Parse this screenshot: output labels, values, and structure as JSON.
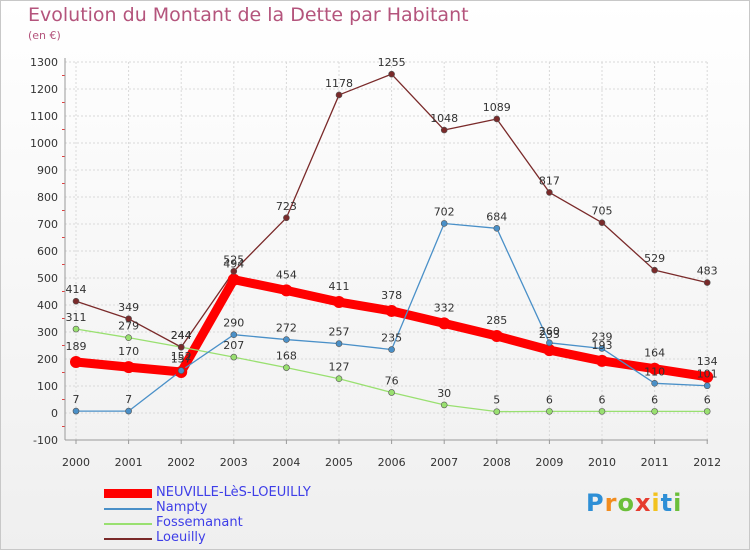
{
  "title": "Evolution du Montant de la Dette par Habitant",
  "subtitle": "(en €)",
  "logo": {
    "text": "Proxiti",
    "colors": [
      "#2e8fd6",
      "#f28c1e",
      "#6bbf3a",
      "#e63b2e",
      "#f2c21e",
      "#2e8fd6",
      "#6bbf3a"
    ]
  },
  "chart_data": {
    "type": "line",
    "x": [
      "2000",
      "2001",
      "2002",
      "2003",
      "2004",
      "2005",
      "2006",
      "2007",
      "2008",
      "2009",
      "2010",
      "2011",
      "2012"
    ],
    "ylim": [
      -100,
      1300
    ],
    "yticks": [
      -100,
      0,
      100,
      200,
      300,
      400,
      500,
      600,
      700,
      800,
      900,
      1000,
      1100,
      1200,
      1300
    ],
    "grid": true,
    "legend_position": "bottom-left",
    "series": [
      {
        "name": "NEUVILLE-LèS-LOEUILLY",
        "color": "#ff0000",
        "values": [
          189,
          170,
          152,
          494,
          454,
          411,
          378,
          332,
          285,
          233,
          193,
          164,
          134
        ]
      },
      {
        "name": "Nampty",
        "color": "#4a90c8",
        "values": [
          7,
          7,
          157,
          290,
          272,
          257,
          235,
          702,
          684,
          260,
          239,
          110,
          101
        ]
      },
      {
        "name": "Fossemanant",
        "color": "#99e070",
        "values": [
          311,
          279,
          244,
          207,
          168,
          127,
          76,
          30,
          5,
          6,
          6,
          6,
          6
        ]
      },
      {
        "name": "Loeuilly",
        "color": "#7a2a2a",
        "values": [
          414,
          349,
          244,
          525,
          723,
          1178,
          1255,
          1048,
          1089,
          817,
          705,
          529,
          483
        ]
      }
    ]
  }
}
